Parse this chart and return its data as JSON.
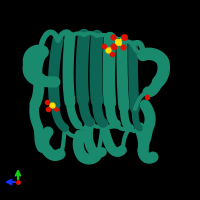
{
  "background_color": "#000000",
  "protein_color": "#1a8a6e",
  "protein_color_dark": "#0d6655",
  "protein_color_mid": "#148070",
  "small_molecule_red": "#dd1100",
  "small_molecule_orange": "#ff4400",
  "small_molecule_yellow": "#ffdd00",
  "axis_x_color": "#1133ff",
  "axis_y_color": "#11cc11",
  "axis_origin_color": "#dd1100",
  "figsize": [
    2.0,
    2.0
  ],
  "dpi": 100
}
